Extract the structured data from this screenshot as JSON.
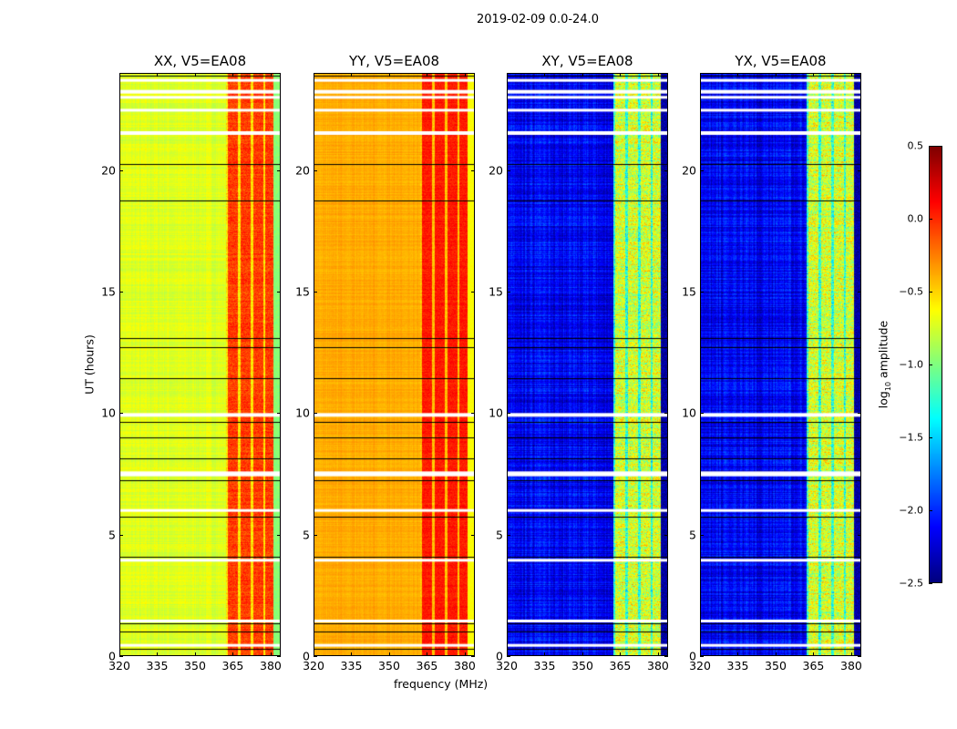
{
  "chart_data": {
    "type": "heatmap",
    "title": "2019-02-09 0.0-24.0",
    "xlabel": "frequency (MHz)",
    "ylabel": "UT (hours)",
    "xlim": [
      320,
      384
    ],
    "ylim": [
      0,
      24
    ],
    "xticks": [
      320,
      335,
      350,
      365,
      380
    ],
    "yticks": [
      0,
      5,
      10,
      15,
      20
    ],
    "colormap": "jet",
    "colorbar": {
      "label_main": "log",
      "label_sub": "10",
      "label_rest": " amplitude",
      "range": [
        -2.5,
        0.5
      ],
      "ticks": [
        "0.5",
        "0.0",
        "−0.5",
        "−1.0",
        "−1.5",
        "−2.0",
        "−2.5"
      ],
      "tick_values": [
        0.5,
        0.0,
        -0.5,
        -1.0,
        -1.5,
        -2.0,
        -2.5
      ]
    },
    "rfi_band_mhz": [
      362,
      381
    ],
    "flagged_hours": [
      [
        23.65,
        23.75
      ],
      [
        23.15,
        23.3
      ],
      [
        22.95,
        23.05
      ],
      [
        22.45,
        22.52
      ],
      [
        21.45,
        21.6
      ],
      [
        9.85,
        10.0
      ],
      [
        7.4,
        7.6
      ],
      [
        5.95,
        6.05
      ],
      [
        3.9,
        4.0
      ],
      [
        1.4,
        1.5
      ],
      [
        0.4,
        0.5
      ]
    ],
    "scan_boundaries_hours": [
      23.9,
      20.25,
      18.75,
      13.1,
      12.7,
      11.45,
      9.65,
      9.0,
      8.15,
      7.25,
      5.75,
      4.1,
      1.35,
      1.0,
      0.3
    ],
    "panels": [
      {
        "title": "XX, V5=EA08",
        "baseline_log_amp": -0.72,
        "rfi_log_amp": -0.05,
        "noise": 0.12
      },
      {
        "title": "YY, V5=EA08",
        "baseline_log_amp": -0.38,
        "rfi_log_amp": 0.05,
        "noise": 0.08
      },
      {
        "title": "XY, V5=EA08",
        "baseline_log_amp": -2.15,
        "rfi_log_amp": -0.75,
        "noise": 0.3
      },
      {
        "title": "YX, V5=EA08",
        "baseline_log_amp": -2.15,
        "rfi_log_amp": -0.75,
        "noise": 0.3
      }
    ]
  }
}
